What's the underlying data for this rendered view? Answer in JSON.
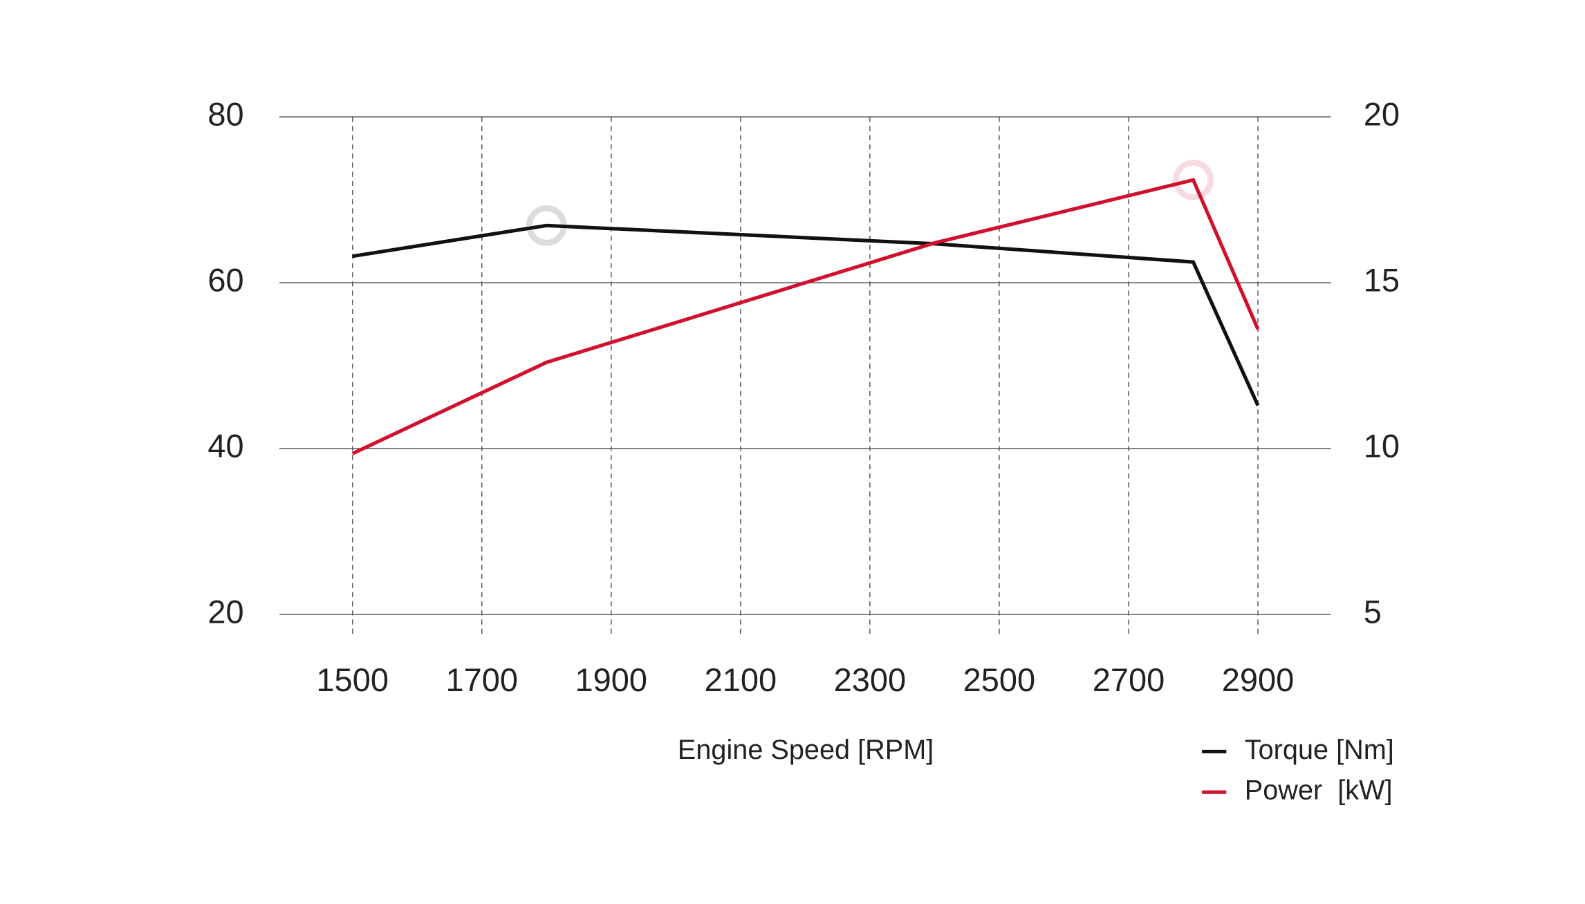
{
  "chart_data": {
    "type": "line",
    "x": [
      1500,
      1800,
      2400,
      2800,
      2900
    ],
    "xlim": [
      1387,
      3013
    ],
    "xticks": [
      1500,
      1700,
      1900,
      2100,
      2300,
      2500,
      2700,
      2900
    ],
    "x_label": "Engine Speed [RPM]",
    "ylim": [
      20,
      80
    ],
    "yticks": [
      20,
      40,
      60,
      80
    ],
    "y2lim": [
      5,
      20
    ],
    "y2ticks": [
      5,
      10,
      15,
      20
    ],
    "grid": true,
    "legend": "bottom-right",
    "series": [
      {
        "name": "Torque [Nm]",
        "color": "#111111",
        "values": [
          63.2,
          66.9,
          64.7,
          62.5,
          45.2
        ]
      },
      {
        "name": "Power  [kW]",
        "color": "#d0102c",
        "axis": "y2",
        "values": [
          9.85,
          12.6,
          16.2,
          18.1,
          13.6
        ]
      }
    ]
  }
}
